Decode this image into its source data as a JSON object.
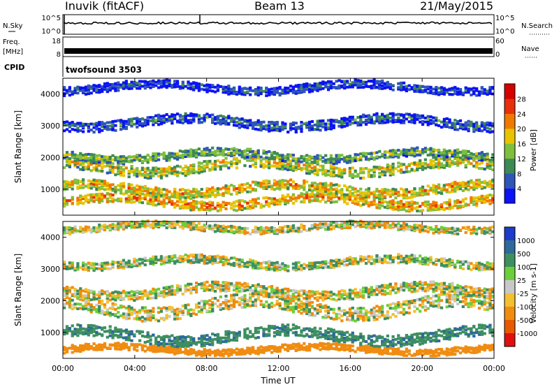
{
  "header": {
    "site": "Inuvik (fitACF)",
    "beam": "Beam 13",
    "date": "21/May/2015"
  },
  "strips": {
    "nsky_label": "N.Sky",
    "nsky_ticks": [
      "10^5",
      "10^0"
    ],
    "nsearch_label": "N.Search",
    "nsearch_ticks": [
      "10^5",
      "10^0"
    ],
    "freq_label_1": "Freq.",
    "freq_label_2": "[MHz]",
    "freq_ticks": [
      "18",
      "8"
    ],
    "nave_label": "Nave",
    "nave_ticks": [
      "60",
      "0"
    ],
    "cpid_label": "CPID",
    "cpid_value": "twofsound 3503"
  },
  "chart_data": [
    {
      "type": "heatmap",
      "panel": "power",
      "ylabel": "Slant Range [km]",
      "xlabel": "",
      "ylim": [
        180,
        4500
      ],
      "yticks": [
        "1000",
        "2000",
        "3000",
        "4000"
      ],
      "xlim_hours": [
        0,
        24
      ],
      "colorbar": {
        "label": "Power [dB]",
        "ticks": [
          "4",
          "8",
          "12",
          "16",
          "20",
          "24",
          "28"
        ],
        "colors": [
          "#0c13f4",
          "#2e55b8",
          "#3d8a54",
          "#7fbf3c",
          "#e8c300",
          "#f07a00",
          "#e8300a",
          "#d50000"
        ]
      },
      "bands": [
        {
          "center_km": 600,
          "width_km": 300,
          "level": 22
        },
        {
          "center_km": 1000,
          "width_km": 300,
          "level": 20
        },
        {
          "center_km": 1700,
          "width_km": 350,
          "level": 18
        },
        {
          "center_km": 2050,
          "width_km": 250,
          "level": 14
        },
        {
          "center_km": 3100,
          "width_km": 300,
          "level": 8
        },
        {
          "center_km": 4200,
          "width_km": 250,
          "level": 6
        }
      ]
    },
    {
      "type": "heatmap",
      "panel": "velocity",
      "ylabel": "Slant Range [km]",
      "xlabel": "Time UT",
      "ylim": [
        180,
        4500
      ],
      "yticks": [
        "1000",
        "2000",
        "3000",
        "4000"
      ],
      "xticks": [
        "00:00",
        "04:00",
        "08:00",
        "12:00",
        "16:00",
        "20:00",
        "00:00"
      ],
      "xlim_hours": [
        0,
        24
      ],
      "colorbar": {
        "label": "Velocity [m s-1]",
        "ticks": [
          "1000",
          "500",
          "100",
          "25",
          "-25",
          "-100",
          "-500",
          "-1000"
        ],
        "colors": [
          "#1e3cc8",
          "#2e6a9a",
          "#3d8f60",
          "#6ccf3a",
          "#c8c8c8",
          "#f2c030",
          "#f08c10",
          "#e85a00",
          "#e01010"
        ]
      },
      "bands": [
        {
          "center_km": 450,
          "width_km": 200,
          "level": -300
        },
        {
          "center_km": 900,
          "width_km": 350,
          "level": 400
        },
        {
          "center_km": 1800,
          "width_km": 450,
          "level": 0
        },
        {
          "center_km": 2300,
          "width_km": 300,
          "level": 0
        },
        {
          "center_km": 3200,
          "width_km": 250,
          "level": 50
        },
        {
          "center_km": 4300,
          "width_km": 200,
          "level": 0
        }
      ]
    }
  ]
}
